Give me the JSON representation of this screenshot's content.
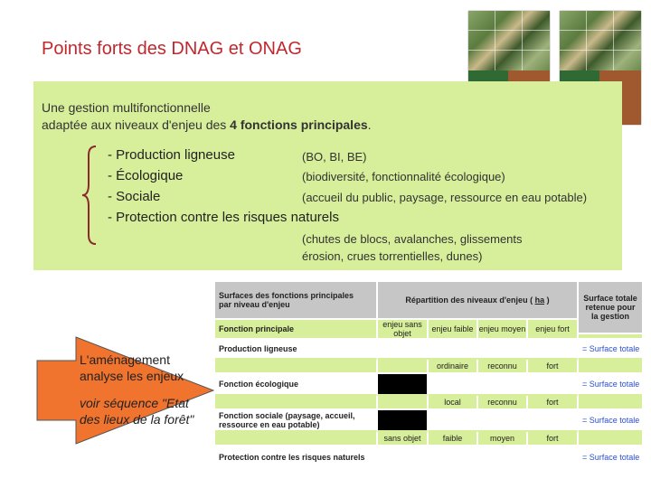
{
  "title": "Points forts des DNAG et ONAG",
  "intro": {
    "line1": "Une gestion multifonctionnelle",
    "line2_prefix": "adaptée aux niveaux d'enjeu des ",
    "line2_bold": "4 fonctions principales",
    "line2_suffix": "."
  },
  "functions": [
    {
      "label": "- Production ligneuse",
      "detail": "(BO, BI, BE)"
    },
    {
      "label": "- Écologique",
      "detail": "(biodiversité, fonctionnalité écologique)"
    },
    {
      "label": "- Sociale",
      "detail": "(accueil du public, paysage, ressource en eau potable)"
    },
    {
      "label": "- Protection contre les risques naturels",
      "detail_line1": "(chutes de blocs, avalanches, glissements",
      "detail_line2": " érosion, crues torrentielles, dunes)"
    }
  ],
  "arrow_box": {
    "line1": "L'aménagement",
    "line2": "analyse les enjeux",
    "line3": "voir séquence \"Etat",
    "line4": "des lieux de la forêt\""
  },
  "table": {
    "col1_header_line1": "Surfaces des fonctions principales",
    "col1_header_line2": "par niveau d'enjeu",
    "group_header_prefix": "Répartition des niveaux d'enjeu (",
    "group_header_unit": "ha",
    "group_header_suffix": ")",
    "total_header_line1": "Surface totale",
    "total_header_line2": "retenue pour",
    "total_header_line3": "la gestion",
    "fonction_principale": "Fonction principale",
    "levels": [
      "enjeu sans objet",
      "enjeu faible",
      "enjeu moyen",
      "enjeu fort"
    ],
    "rows": {
      "production": {
        "label": "Production ligneuse",
        "total": "= Surface totale"
      },
      "ecologique": {
        "label": "Fonction écologique",
        "sublevels": [
          "ordinaire",
          "reconnu",
          "fort"
        ],
        "total": "= Surface totale"
      },
      "sociale": {
        "label_line1": "Fonction sociale (paysage, accueil,",
        "label_line2": "ressource en eau potable)",
        "sublevels": [
          "local",
          "reconnu",
          "fort"
        ],
        "total": "= Surface totale"
      },
      "protection": {
        "label": "Protection contre les risques naturels",
        "sublevels": [
          "sans objet",
          "faible",
          "moyen",
          "fort"
        ],
        "total": "= Surface totale"
      }
    }
  },
  "colors": {
    "title": "#c0282e",
    "green_box": "#d7ee9a",
    "arrow": "#f0732e",
    "table_header": "#c6c6c6",
    "blue_text": "#2b4fcf"
  }
}
